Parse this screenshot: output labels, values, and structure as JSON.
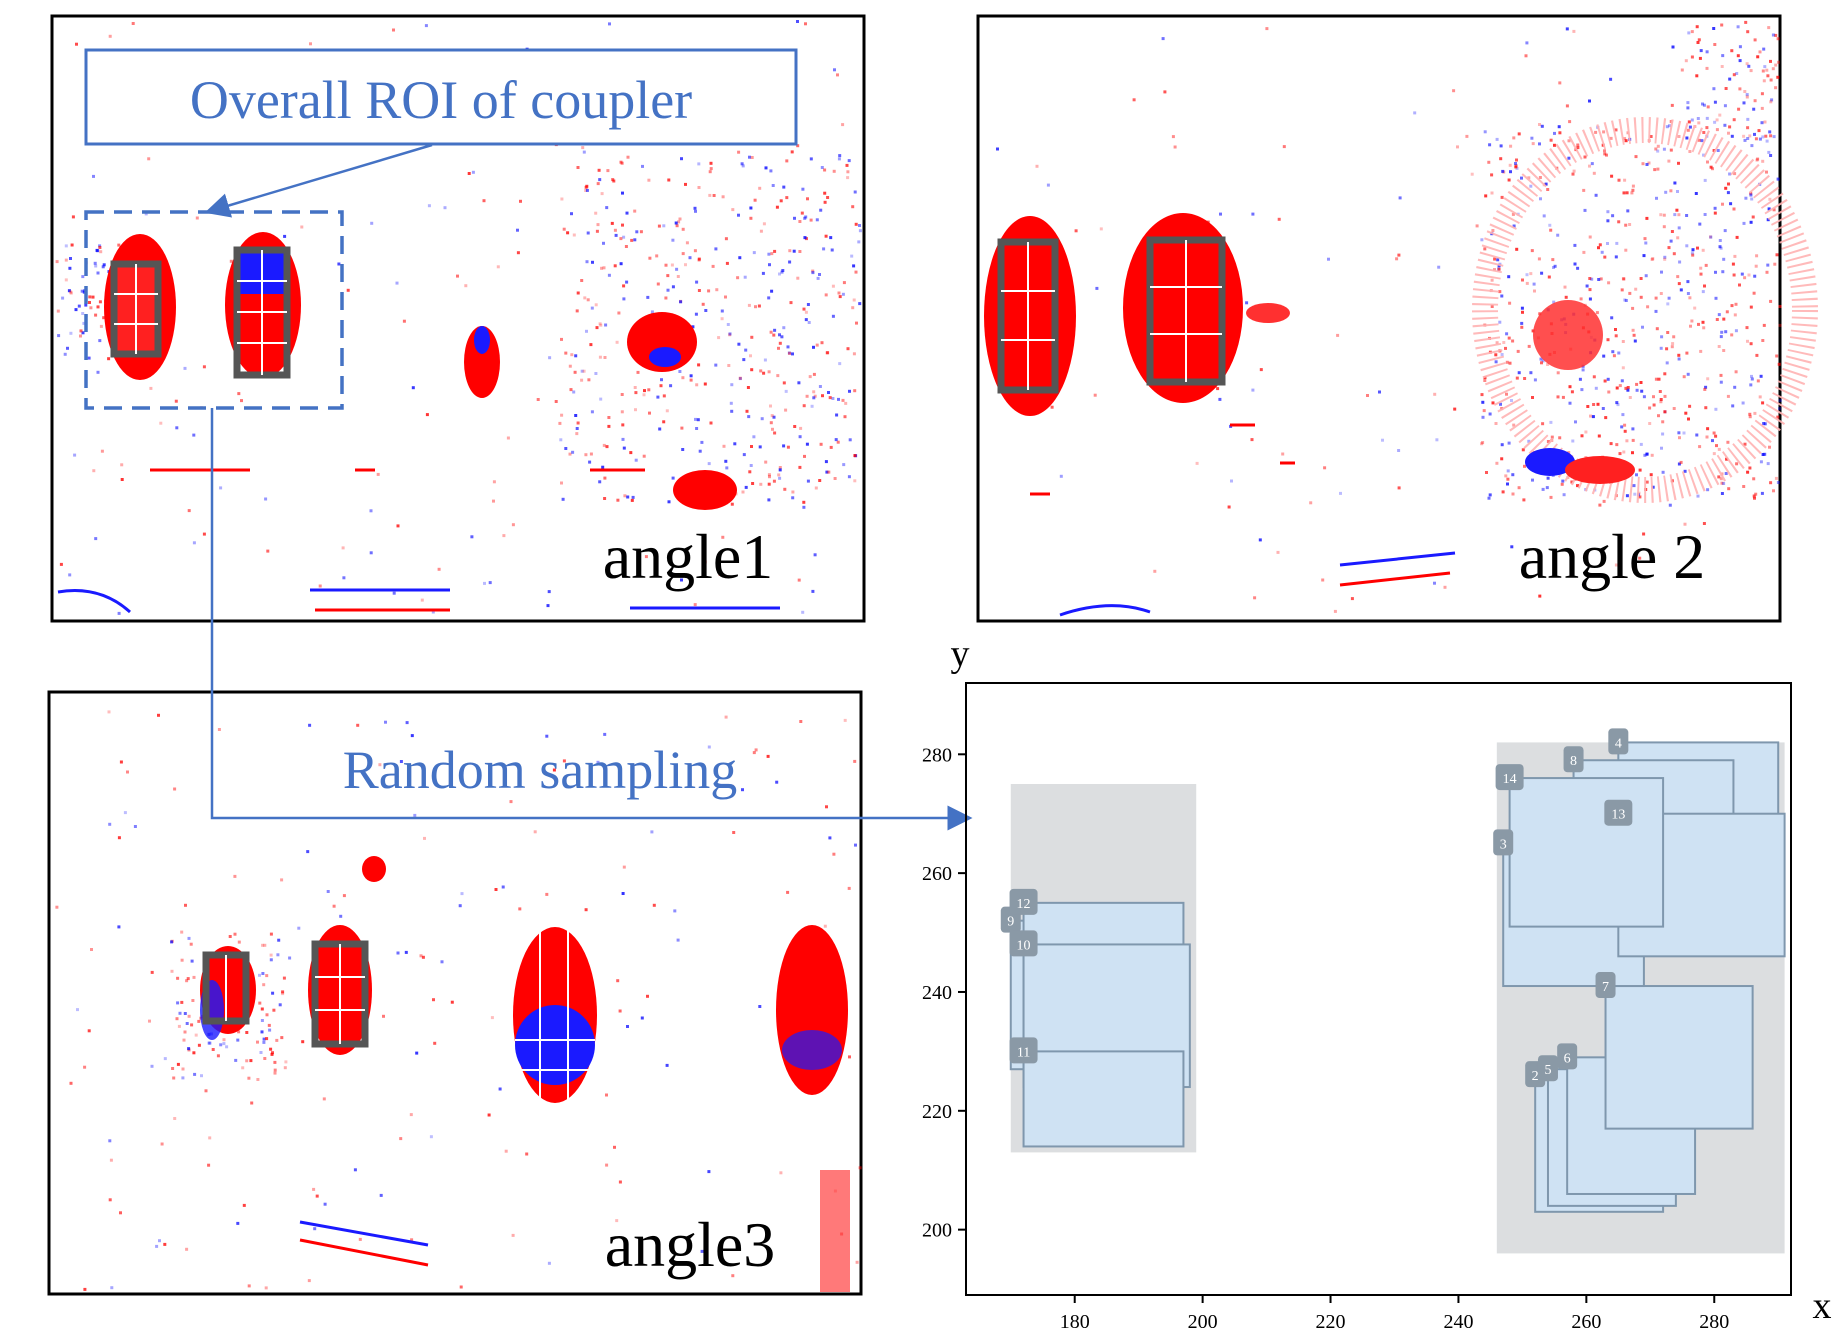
{
  "panels": {
    "angle1": {
      "caption": "angle1"
    },
    "angle2": {
      "caption": "angle 2"
    },
    "angle3": {
      "caption": "angle3"
    }
  },
  "callouts": {
    "roi_label": "Overall ROI of coupler",
    "sampling_label": "Random sampling"
  },
  "colors": {
    "accent": "#4472c4",
    "heat_red": "#ff0000",
    "heat_blue": "#0000ff",
    "roi_box": "#555555",
    "region_fill": "#dcdee0",
    "sample_fill": "#cfe2f3",
    "sample_edge": "#7f97ad",
    "badge": "#8a99a6"
  },
  "chart_data": {
    "type": "scatter",
    "title": "",
    "xlabel": "x",
    "ylabel": "y",
    "xlim": [
      163,
      292
    ],
    "ylim": [
      189,
      292
    ],
    "xticks": [
      180,
      200,
      220,
      240,
      260,
      280
    ],
    "yticks": [
      200,
      220,
      240,
      260,
      280
    ],
    "regions": [
      {
        "x0": 170,
        "x1": 199,
        "y0": 213,
        "y1": 275
      },
      {
        "x0": 246,
        "x1": 291,
        "y0": 196,
        "y1": 282
      }
    ],
    "samples": [
      {
        "id": "2",
        "x0": 252,
        "x1": 272,
        "y0": 203,
        "y1": 226
      },
      {
        "id": "5",
        "x0": 254,
        "x1": 274,
        "y0": 204,
        "y1": 227
      },
      {
        "id": "6",
        "x0": 257,
        "x1": 277,
        "y0": 206,
        "y1": 229
      },
      {
        "id": "7",
        "x0": 263,
        "x1": 286,
        "y0": 217,
        "y1": 241
      },
      {
        "id": "3",
        "x0": 247,
        "x1": 269,
        "y0": 241,
        "y1": 265
      },
      {
        "id": "4",
        "x0": 265,
        "x1": 290,
        "y0": 258,
        "y1": 282
      },
      {
        "id": "8",
        "x0": 258,
        "x1": 283,
        "y0": 256,
        "y1": 279
      },
      {
        "id": "13",
        "x0": 265,
        "x1": 291,
        "y0": 246,
        "y1": 270
      },
      {
        "id": "14",
        "x0": 248,
        "x1": 272,
        "y0": 251,
        "y1": 276
      },
      {
        "id": "9",
        "x0": 170,
        "x1": 196,
        "y0": 227,
        "y1": 252
      },
      {
        "id": "12",
        "x0": 172,
        "x1": 197,
        "y0": 230,
        "y1": 255
      },
      {
        "id": "10",
        "x0": 172,
        "x1": 198,
        "y0": 224,
        "y1": 248
      },
      {
        "id": "11",
        "x0": 172,
        "x1": 197,
        "y0": 214,
        "y1": 230
      }
    ]
  }
}
